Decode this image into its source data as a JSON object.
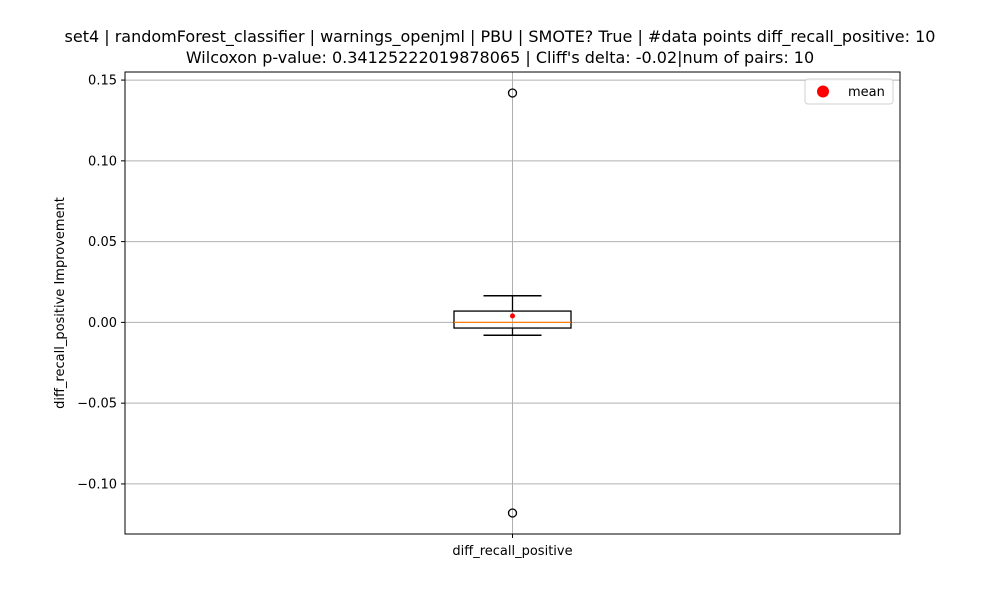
{
  "chart_data": {
    "type": "box",
    "title_line1": "set4 | randomForest_classifier | warnings_openjml | PBU | SMOTE? True | #data points diff_recall_positive: 10",
    "title_line2": "Wilcoxon p-value: 0.34125222019878065 | Cliff's delta: -0.02|num of pairs: 10",
    "xlabel": "",
    "ylabel": "diff_recall_positive Improvement",
    "categories": [
      "diff_recall_positive"
    ],
    "ylim": [
      -0.131,
      0.155
    ],
    "yticks": [
      -0.1,
      -0.05,
      0.0,
      0.05,
      0.1,
      0.15
    ],
    "ytick_labels": [
      "−0.10",
      "−0.05",
      "0.00",
      "0.05",
      "0.10",
      "0.15"
    ],
    "grid": true,
    "legend": {
      "position": "top-right",
      "entries": [
        {
          "label": "mean",
          "color": "#ff0000"
        }
      ]
    },
    "box": {
      "q1": -0.0035,
      "median": 0.0,
      "q3": 0.007,
      "whisker_low": -0.008,
      "whisker_high": 0.0165,
      "mean": 0.004,
      "outliers": [
        0.142,
        -0.118
      ]
    },
    "colors": {
      "median": "#ff7f0e",
      "mean": "#ff0000",
      "grid": "#b0b0b0",
      "box": "#000000"
    }
  }
}
